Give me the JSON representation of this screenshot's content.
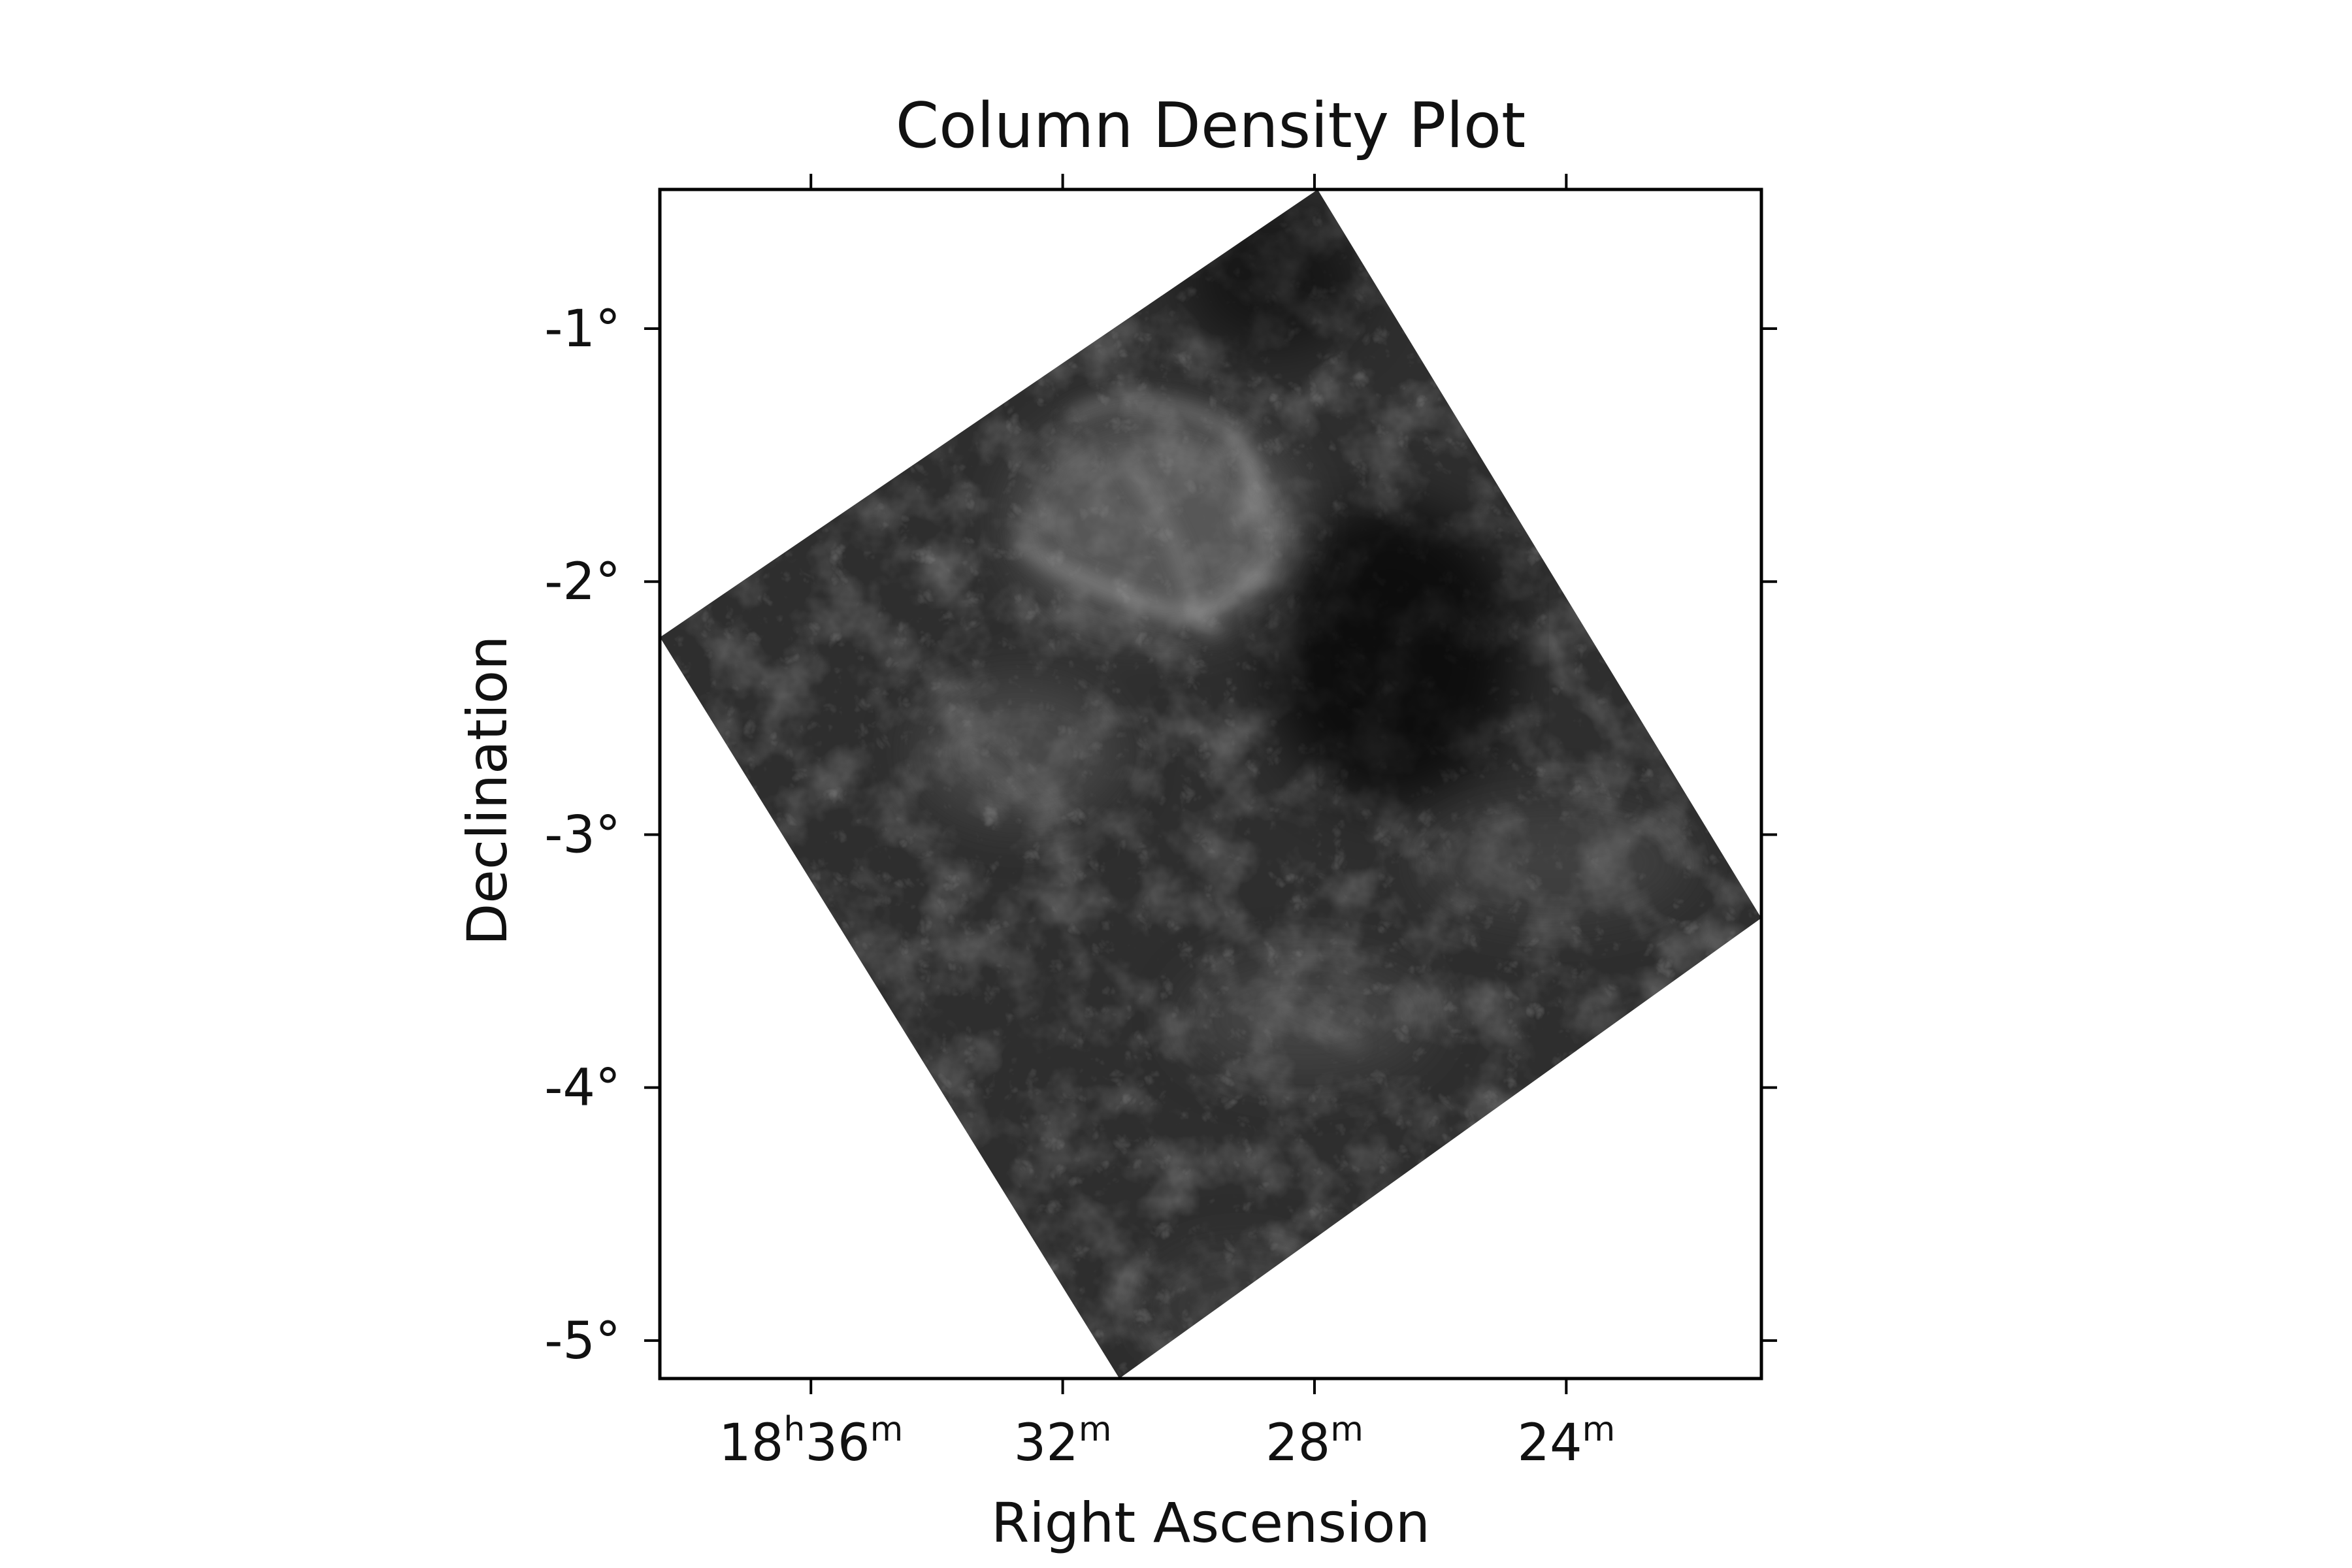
{
  "chart_data": {
    "type": "heatmap",
    "title": "Column Density Plot",
    "xlabel": "Right Ascension",
    "ylabel": "Declination",
    "grid": false,
    "colormap": "grayscale",
    "x_ticks": [
      {
        "value": 36,
        "hours": "18",
        "minutes": "36",
        "label": "18h36m"
      },
      {
        "value": 32,
        "hours": "",
        "minutes": "32",
        "label": "32m"
      },
      {
        "value": 28,
        "hours": "",
        "minutes": "28",
        "label": "28m"
      },
      {
        "value": 24,
        "hours": "",
        "minutes": "24",
        "label": "24m"
      }
    ],
    "y_ticks": [
      {
        "value": -1,
        "label": "-1°"
      },
      {
        "value": -2,
        "label": "-2°"
      },
      {
        "value": -3,
        "label": "-3°"
      },
      {
        "value": -4,
        "label": "-4°"
      },
      {
        "value": -5,
        "label": "-5°"
      }
    ],
    "xlim": [
      38.4,
      20.9
    ],
    "ylim": [
      -5.15,
      -0.45
    ],
    "footprint_corners": [
      {
        "ra": 27.95,
        "dec": -0.45
      },
      {
        "ra": 20.9,
        "dec": -3.33
      },
      {
        "ra": 31.1,
        "dec": -5.15
      },
      {
        "ra": 38.4,
        "dec": -2.22
      }
    ],
    "colors": {
      "background": "#ffffff",
      "axis": "#000000",
      "map_dark": "#0b0b0b",
      "map_mid": "#2e2e2e",
      "map_bright": "#d0d0d0"
    }
  }
}
